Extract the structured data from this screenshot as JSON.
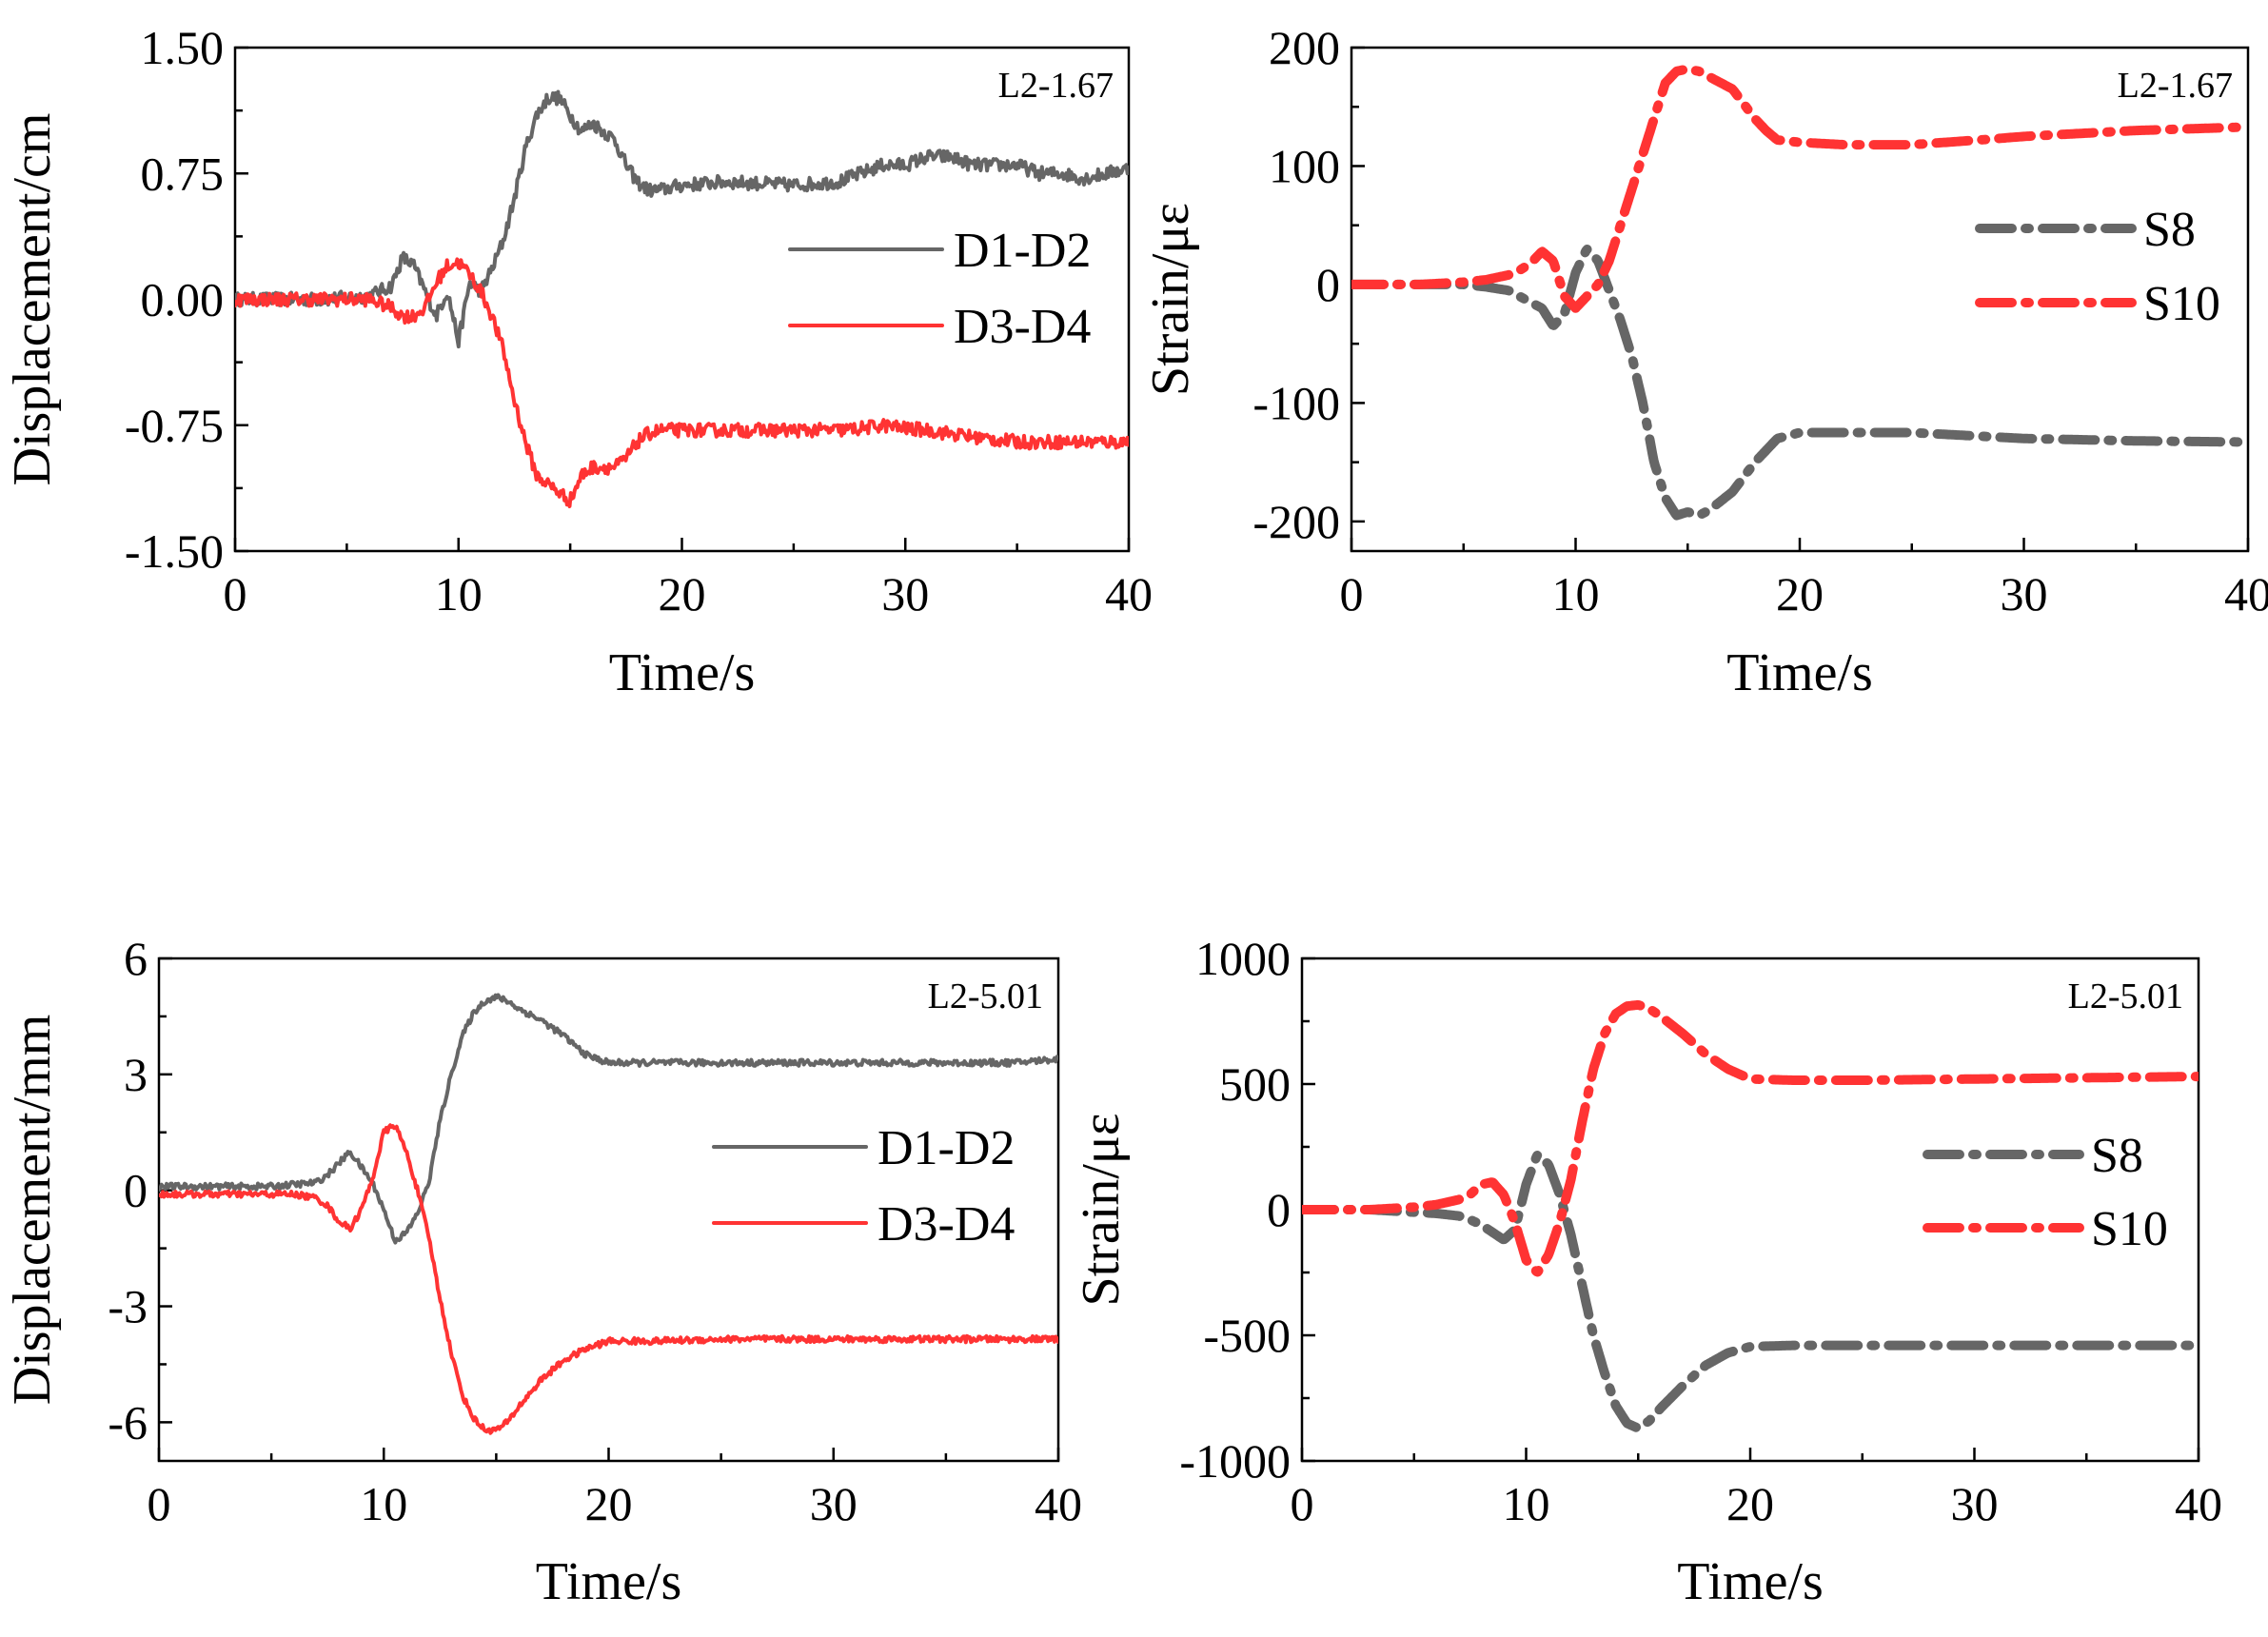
{
  "colors": {
    "gray": "#666666",
    "red": "#ff3333",
    "axis": "#000000"
  },
  "chart_data": [
    {
      "type": "line",
      "panel_label": "L2-1.67",
      "xlabel": "Time/s",
      "ylabel": "Displacement/cm",
      "xlim": [
        0,
        40
      ],
      "ylim": [
        -1.5,
        1.5
      ],
      "xticks": [
        0,
        10,
        20,
        30,
        40
      ],
      "yticks": [
        -1.5,
        -0.75,
        0,
        0.75,
        1.5
      ],
      "ytick_labels": [
        "-1.50",
        "-0.75",
        "0.00",
        "0.75",
        "1.50"
      ],
      "legend_position": "right",
      "series": [
        {
          "name": "D1-D2",
          "color": "#666666",
          "style": "solid",
          "x": [
            0,
            2,
            4,
            6,
            7,
            7.5,
            8,
            8.5,
            9,
            9.5,
            10,
            10.5,
            11,
            11.5,
            12,
            12.5,
            13,
            13.5,
            14,
            14.5,
            15,
            15.5,
            16,
            17,
            17.5,
            18,
            18.5,
            19,
            20,
            22,
            25,
            27,
            28,
            29,
            30,
            31,
            32,
            33,
            35,
            36,
            37,
            38,
            39,
            40
          ],
          "y": [
            0,
            0,
            0,
            0.02,
            0.08,
            0.25,
            0.2,
            0.05,
            -0.1,
            0.05,
            -0.25,
            0.1,
            0.05,
            0.18,
            0.35,
            0.6,
            0.9,
            1.1,
            1.2,
            1.2,
            1.1,
            1.0,
            1.05,
            0.95,
            0.8,
            0.7,
            0.65,
            0.65,
            0.68,
            0.7,
            0.68,
            0.7,
            0.75,
            0.8,
            0.8,
            0.85,
            0.85,
            0.8,
            0.8,
            0.75,
            0.75,
            0.72,
            0.75,
            0.78
          ],
          "noise": 0.04
        },
        {
          "name": "D3-D4",
          "color": "#ff3333",
          "style": "solid",
          "x": [
            0,
            2,
            4,
            6,
            7,
            7.5,
            8,
            8.5,
            9,
            9.5,
            10,
            10.5,
            11,
            11.5,
            12,
            12.5,
            13,
            13.5,
            14,
            14.5,
            15,
            15.5,
            16,
            17,
            17.5,
            18,
            18.5,
            19,
            20,
            22,
            25,
            27,
            28,
            29,
            30,
            31,
            32,
            33,
            35,
            36,
            37,
            38,
            39,
            40
          ],
          "y": [
            0,
            0,
            0,
            0,
            -0.05,
            -0.1,
            -0.1,
            -0.05,
            0.1,
            0.2,
            0.22,
            0.15,
            0.05,
            -0.1,
            -0.3,
            -0.6,
            -0.85,
            -1.05,
            -1.1,
            -1.15,
            -1.2,
            -1.05,
            -1.0,
            -1.0,
            -0.95,
            -0.85,
            -0.8,
            -0.78,
            -0.78,
            -0.78,
            -0.78,
            -0.78,
            -0.77,
            -0.75,
            -0.77,
            -0.78,
            -0.8,
            -0.82,
            -0.85,
            -0.85,
            -0.85,
            -0.85,
            -0.85,
            -0.85
          ],
          "noise": 0.04
        }
      ]
    },
    {
      "type": "line",
      "panel_label": "L2-1.67",
      "xlabel": "Time/s",
      "ylabel": "Strain/με",
      "xlim": [
        0,
        40
      ],
      "ylim": [
        -225,
        200
      ],
      "xticks": [
        0,
        10,
        20,
        30,
        40
      ],
      "yticks": [
        -200,
        -100,
        0,
        100,
        200
      ],
      "ytick_labels": [
        "-200",
        "-100",
        "0",
        "100",
        "200"
      ],
      "legend_position": "right",
      "series": [
        {
          "name": "S8",
          "color": "#666666",
          "style": "dashdot",
          "x": [
            0,
            3,
            5,
            6,
            7,
            7.5,
            8,
            8.5,
            9,
            9.5,
            10,
            10.5,
            11,
            11.5,
            12,
            12.5,
            13,
            13.5,
            14,
            14.5,
            15,
            15.5,
            16,
            17,
            18,
            18.5,
            19,
            20,
            22,
            25,
            28,
            30,
            35,
            40
          ],
          "y": [
            0,
            0,
            0,
            -2,
            -5,
            -10,
            -15,
            -20,
            -35,
            -25,
            10,
            30,
            20,
            -5,
            -30,
            -60,
            -100,
            -150,
            -180,
            -195,
            -192,
            -195,
            -190,
            -175,
            -150,
            -140,
            -130,
            -125,
            -125,
            -125,
            -128,
            -130,
            -132,
            -133
          ],
          "noise": 0
        },
        {
          "name": "S10",
          "color": "#ff3333",
          "style": "dashdot",
          "x": [
            0,
            3,
            5,
            6,
            7,
            7.5,
            8,
            8.5,
            9,
            9.5,
            10,
            10.5,
            11,
            11.5,
            12,
            12.5,
            13,
            13.5,
            14,
            14.5,
            15,
            15.5,
            16,
            17,
            18,
            18.5,
            19,
            20,
            22,
            25,
            28,
            30,
            35,
            40
          ],
          "y": [
            0,
            0,
            2,
            4,
            8,
            12,
            18,
            28,
            20,
            -10,
            -20,
            -10,
            0,
            20,
            50,
            80,
            110,
            140,
            170,
            180,
            182,
            180,
            175,
            165,
            140,
            130,
            122,
            120,
            118,
            118,
            122,
            125,
            130,
            133
          ],
          "noise": 0
        }
      ]
    },
    {
      "type": "line",
      "panel_label": "L2-5.01",
      "xlabel": "Time/s",
      "ylabel": "Displacement/mm",
      "xlim": [
        0,
        40
      ],
      "ylim": [
        -7,
        6
      ],
      "xticks": [
        0,
        10,
        20,
        30,
        40
      ],
      "yticks": [
        -6,
        -3,
        0,
        3,
        6
      ],
      "ytick_labels": [
        "-6",
        "-3",
        "0",
        "3",
        "6"
      ],
      "legend_position": "right",
      "series": [
        {
          "name": "D1-D2",
          "color": "#666666",
          "style": "solid",
          "x": [
            0,
            2,
            4,
            5,
            6,
            7,
            7.5,
            8,
            8.5,
            9,
            9.5,
            10,
            10.5,
            11,
            11.5,
            12,
            12.5,
            13,
            13.5,
            14,
            14.5,
            15,
            15.5,
            16,
            17,
            18,
            19,
            20,
            22,
            25,
            30,
            35,
            38,
            40
          ],
          "y": [
            0.1,
            0.1,
            0.1,
            0.1,
            0.15,
            0.2,
            0.4,
            0.7,
            1.0,
            0.6,
            0.2,
            -0.5,
            -1.3,
            -1.1,
            -0.6,
            0.2,
            1.8,
            3.0,
            4.0,
            4.6,
            4.9,
            5.0,
            4.9,
            4.7,
            4.4,
            4.0,
            3.5,
            3.3,
            3.3,
            3.3,
            3.3,
            3.3,
            3.3,
            3.4
          ],
          "noise": 0.08
        },
        {
          "name": "D3-D4",
          "color": "#ff3333",
          "style": "solid",
          "x": [
            0,
            2,
            4,
            5,
            6,
            7,
            7.5,
            8,
            8.5,
            9,
            9.5,
            10,
            10.5,
            11,
            11.5,
            12,
            12.5,
            13,
            13.5,
            14,
            14.5,
            15,
            15.5,
            16,
            17,
            18,
            19,
            20,
            22,
            25,
            30,
            35,
            38,
            40
          ],
          "y": [
            -0.1,
            -0.1,
            -0.1,
            -0.1,
            -0.1,
            -0.2,
            -0.4,
            -0.8,
            -1.0,
            -0.5,
            0.3,
            1.5,
            1.7,
            1.0,
            0.0,
            -1.2,
            -2.8,
            -4.2,
            -5.3,
            -5.9,
            -6.2,
            -6.2,
            -6.0,
            -5.6,
            -4.9,
            -4.4,
            -4.1,
            -3.9,
            -3.9,
            -3.85,
            -3.85,
            -3.85,
            -3.85,
            -3.85
          ],
          "noise": 0.08
        }
      ]
    },
    {
      "type": "line",
      "panel_label": "L2-5.01",
      "xlabel": "Time/s",
      "ylabel": "Strain/με",
      "xlim": [
        0,
        40
      ],
      "ylim": [
        -1000,
        1000
      ],
      "xticks": [
        0,
        10,
        20,
        30,
        40
      ],
      "yticks": [
        -1000,
        -500,
        0,
        500,
        1000
      ],
      "ytick_labels": [
        "-1000",
        "-500",
        "0",
        "500",
        "1000"
      ],
      "legend_position": "right",
      "series": [
        {
          "name": "S8",
          "color": "#666666",
          "style": "dashdot",
          "x": [
            0,
            3,
            5,
            6,
            7,
            7.5,
            8,
            8.5,
            9,
            9.5,
            10,
            10.5,
            11,
            11.5,
            12,
            12.5,
            13,
            13.5,
            14,
            14.5,
            15,
            15.5,
            16,
            17,
            18,
            19,
            20,
            22,
            25,
            30,
            35,
            40
          ],
          "y": [
            0,
            0,
            -10,
            -15,
            -25,
            -40,
            -60,
            -90,
            -120,
            -80,
            100,
            220,
            180,
            60,
            -100,
            -300,
            -500,
            -650,
            -780,
            -850,
            -870,
            -840,
            -790,
            -700,
            -620,
            -570,
            -545,
            -540,
            -540,
            -540,
            -540,
            -540
          ],
          "noise": 0
        },
        {
          "name": "S10",
          "color": "#ff3333",
          "style": "dashdot",
          "x": [
            0,
            3,
            5,
            6,
            7,
            7.5,
            8,
            8.5,
            9,
            9.5,
            10,
            10.5,
            11,
            11.5,
            12,
            12.5,
            13,
            13.5,
            14,
            14.5,
            15,
            15.5,
            16,
            17,
            18,
            19,
            20,
            22,
            25,
            30,
            35,
            40
          ],
          "y": [
            0,
            0,
            10,
            20,
            40,
            60,
            100,
            110,
            60,
            -50,
            -200,
            -250,
            -180,
            -50,
            120,
            350,
            560,
            700,
            780,
            810,
            815,
            800,
            770,
            700,
            620,
            560,
            520,
            515,
            515,
            520,
            525,
            530
          ],
          "noise": 0
        }
      ]
    }
  ]
}
